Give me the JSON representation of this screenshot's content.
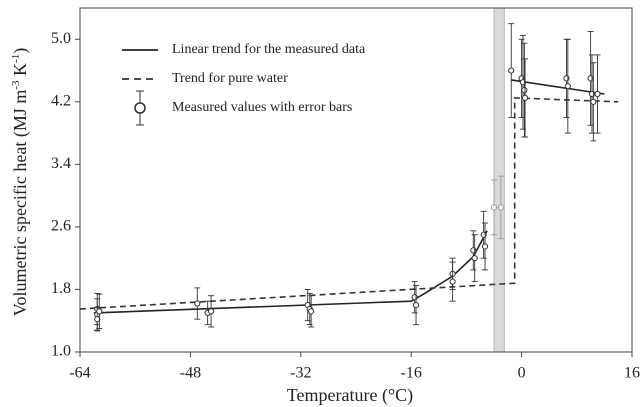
{
  "chart_data": {
    "type": "scatter",
    "ylabel": [
      "Volumetric specific heat (MJ m",
      "-3",
      " K",
      "-1",
      ")"
    ],
    "xlabel": "Temperature (°C)",
    "xlim": [
      -64,
      16
    ],
    "ylim": [
      1.0,
      5.4
    ],
    "xticks": [
      -64,
      -48,
      -32,
      -16,
      0,
      16
    ],
    "yticks": [
      {
        "value": 1.0,
        "label": "1.0"
      },
      1.8,
      2.6,
      3.4,
      4.2,
      {
        "value": 5.0,
        "label": "5.0"
      }
    ],
    "band": [
      -4,
      -2.5
    ],
    "band_color": "#d9d9d9",
    "legend": "upper left",
    "series": [
      {
        "name": "Linear trend for the measured data",
        "style": "solid",
        "color": "#222",
        "x": [
          -62,
          -16,
          -14,
          -10,
          -7,
          -5,
          null,
          -1.5,
          12
        ],
        "values": [
          1.5,
          1.65,
          1.75,
          1.97,
          2.22,
          2.55,
          null,
          4.48,
          4.3
        ]
      },
      {
        "name": "Trend for pure water",
        "style": "dashed",
        "color": "#333",
        "x": [
          -64,
          -1,
          -1,
          14
        ],
        "values": [
          1.55,
          1.88,
          4.25,
          4.2
        ]
      },
      {
        "name": "Measured values with error bars",
        "style": "points",
        "color": "#333",
        "x": [
          -61.5,
          -61.5,
          -61.5,
          -61.2,
          -47,
          -45.5,
          -45,
          -31,
          -30.7,
          -30.5,
          -15.5,
          -15.3,
          -10,
          -10,
          -7,
          -6.8,
          -5.5,
          -5.3,
          -1.5,
          0,
          0.2,
          0.4,
          0.5,
          6.5,
          6.7,
          10,
          10.2,
          10.4,
          11
        ],
        "values": [
          1.55,
          1.48,
          1.42,
          1.52,
          1.62,
          1.5,
          1.52,
          1.6,
          1.55,
          1.52,
          1.7,
          1.6,
          2.0,
          1.9,
          2.3,
          2.2,
          2.5,
          2.35,
          4.6,
          4.5,
          4.45,
          4.35,
          4.25,
          4.5,
          4.4,
          4.5,
          4.3,
          4.2,
          4.3
        ],
        "errors": [
          0.2,
          0.2,
          0.15,
          0.22,
          0.2,
          0.15,
          0.2,
          0.2,
          0.2,
          0.2,
          0.2,
          0.25,
          0.2,
          0.25,
          0.25,
          0.3,
          0.3,
          0.3,
          0.6,
          0.5,
          0.6,
          0.6,
          0.5,
          0.5,
          0.6,
          0.6,
          0.5,
          0.5,
          0.5
        ]
      },
      {
        "style": "points",
        "color": "#999",
        "x": [
          -4,
          -3
        ],
        "values": [
          2.85,
          2.85
        ],
        "errors": [
          0.35,
          0.4
        ]
      }
    ]
  }
}
